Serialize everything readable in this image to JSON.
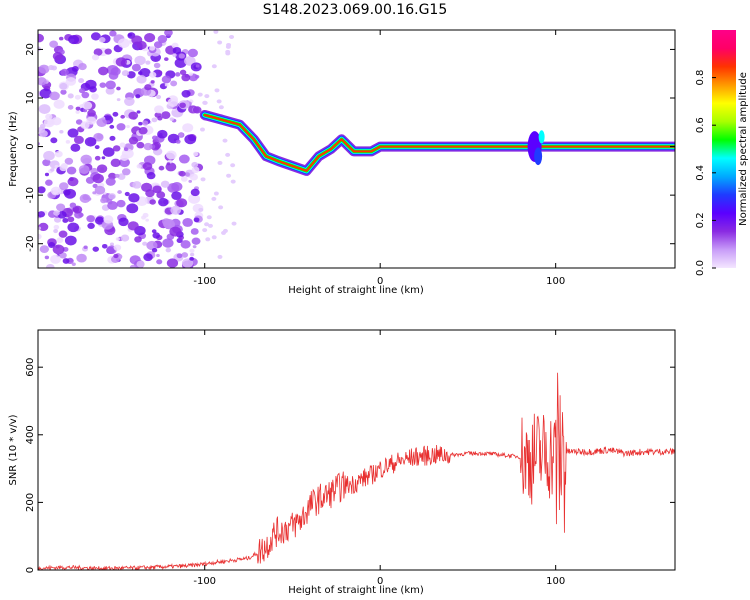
{
  "title": "S148.2023.069.00.16.G15",
  "colors": {
    "snr_line": "#e83030",
    "colormap": [
      "#f4e6ff",
      "#c89cf8",
      "#8a2be2",
      "#5a00ff",
      "#1f3bff",
      "#00aaff",
      "#00ffff",
      "#00ff00",
      "#aaff00",
      "#ffff00",
      "#ff9900",
      "#ff3300",
      "#ff0066",
      "#ff0088"
    ]
  },
  "chart_data": [
    {
      "type": "heatmap",
      "xlabel": "Height of straight line (km)",
      "ylabel": "Frequency (Hz)",
      "xlim": [
        -195,
        168
      ],
      "ylim": [
        -25,
        24
      ],
      "xticks": [
        {
          "value": -100,
          "label": "-100"
        },
        {
          "value": 0,
          "label": "0"
        },
        {
          "value": 100,
          "label": "100"
        }
      ],
      "yticks": [
        {
          "value": 20,
          "label": "20"
        },
        {
          "value": 10,
          "label": "10"
        },
        {
          "value": 0,
          "label": "0"
        },
        {
          "value": -10,
          "label": "-10"
        },
        {
          "value": -20,
          "label": "-20"
        }
      ],
      "colorbar": {
        "label": "Normalized spectral amplitude",
        "range": [
          0,
          1
        ],
        "ticks": [
          {
            "value": 0.0,
            "label": "0.0"
          },
          {
            "value": 0.2,
            "label": "0.2"
          },
          {
            "value": 0.4,
            "label": "0.4"
          },
          {
            "value": 0.6,
            "label": "0.6"
          },
          {
            "value": 0.8,
            "label": "0.8"
          }
        ]
      },
      "ridge": [
        {
          "x": -100,
          "f": 6.5
        },
        {
          "x": -90,
          "f": 5.5
        },
        {
          "x": -80,
          "f": 4.5
        },
        {
          "x": -72,
          "f": 1.5
        },
        {
          "x": -65,
          "f": -2
        },
        {
          "x": -58,
          "f": -3
        },
        {
          "x": -50,
          "f": -4
        },
        {
          "x": -42,
          "f": -5
        },
        {
          "x": -35,
          "f": -2
        },
        {
          "x": -28,
          "f": -0.5
        },
        {
          "x": -22,
          "f": 1.5
        },
        {
          "x": -15,
          "f": -1
        },
        {
          "x": -5,
          "f": -1
        },
        {
          "x": 0,
          "f": 0
        },
        {
          "x": 168,
          "f": 0
        }
      ]
    },
    {
      "type": "line",
      "xlabel": "Height of straight line (km)",
      "ylabel": "SNR (10 * v/v)",
      "xlim": [
        -195,
        168
      ],
      "ylim": [
        0,
        710
      ],
      "xticks": [
        {
          "value": -100,
          "label": "-100"
        },
        {
          "value": 0,
          "label": "0"
        },
        {
          "value": 100,
          "label": "100"
        }
      ],
      "yticks": [
        {
          "value": 0,
          "label": "0"
        },
        {
          "value": 200,
          "label": "200"
        },
        {
          "value": 400,
          "label": "400"
        },
        {
          "value": 600,
          "label": "600"
        }
      ],
      "series": [
        {
          "x": [
            -195,
            -180,
            -160,
            -140,
            -120,
            -110,
            -100,
            -95,
            -85,
            -75,
            -70,
            -65,
            -60,
            -55,
            -50,
            -45,
            -40,
            -35,
            -30,
            -25,
            -20,
            -15,
            -10,
            -5,
            0,
            10,
            20,
            30,
            40,
            50,
            60,
            70,
            80,
            85,
            90,
            95,
            100,
            105,
            110,
            120,
            130,
            140,
            150,
            160,
            168
          ],
          "y": [
            5,
            8,
            5,
            6,
            10,
            12,
            18,
            22,
            28,
            35,
            50,
            70,
            110,
            120,
            130,
            150,
            190,
            210,
            220,
            240,
            250,
            255,
            270,
            280,
            300,
            320,
            335,
            340,
            340,
            345,
            345,
            340,
            335,
            330,
            340,
            345,
            340,
            350,
            350,
            350,
            355,
            345,
            350,
            350,
            350
          ]
        }
      ]
    }
  ]
}
